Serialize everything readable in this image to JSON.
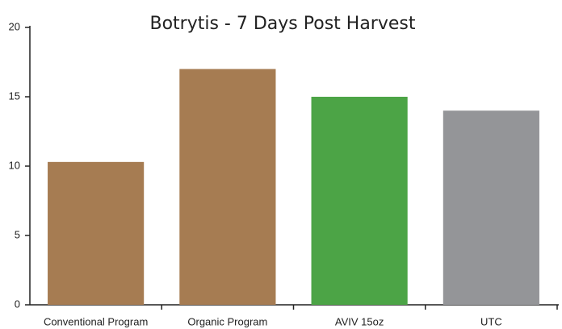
{
  "chart_data": {
    "type": "bar",
    "title": "Botrytis - 7 Days Post Harvest",
    "categories": [
      "Conventional Program",
      "Organic Program",
      "AVIV 15oz",
      "UTC"
    ],
    "values": [
      10.3,
      17,
      15,
      14
    ],
    "colors": [
      "#a67c52",
      "#a67c52",
      "#4ca446",
      "#949598"
    ],
    "ylim": [
      0,
      20
    ],
    "yticks": [
      0,
      5,
      10,
      15,
      20
    ],
    "grid": false
  }
}
